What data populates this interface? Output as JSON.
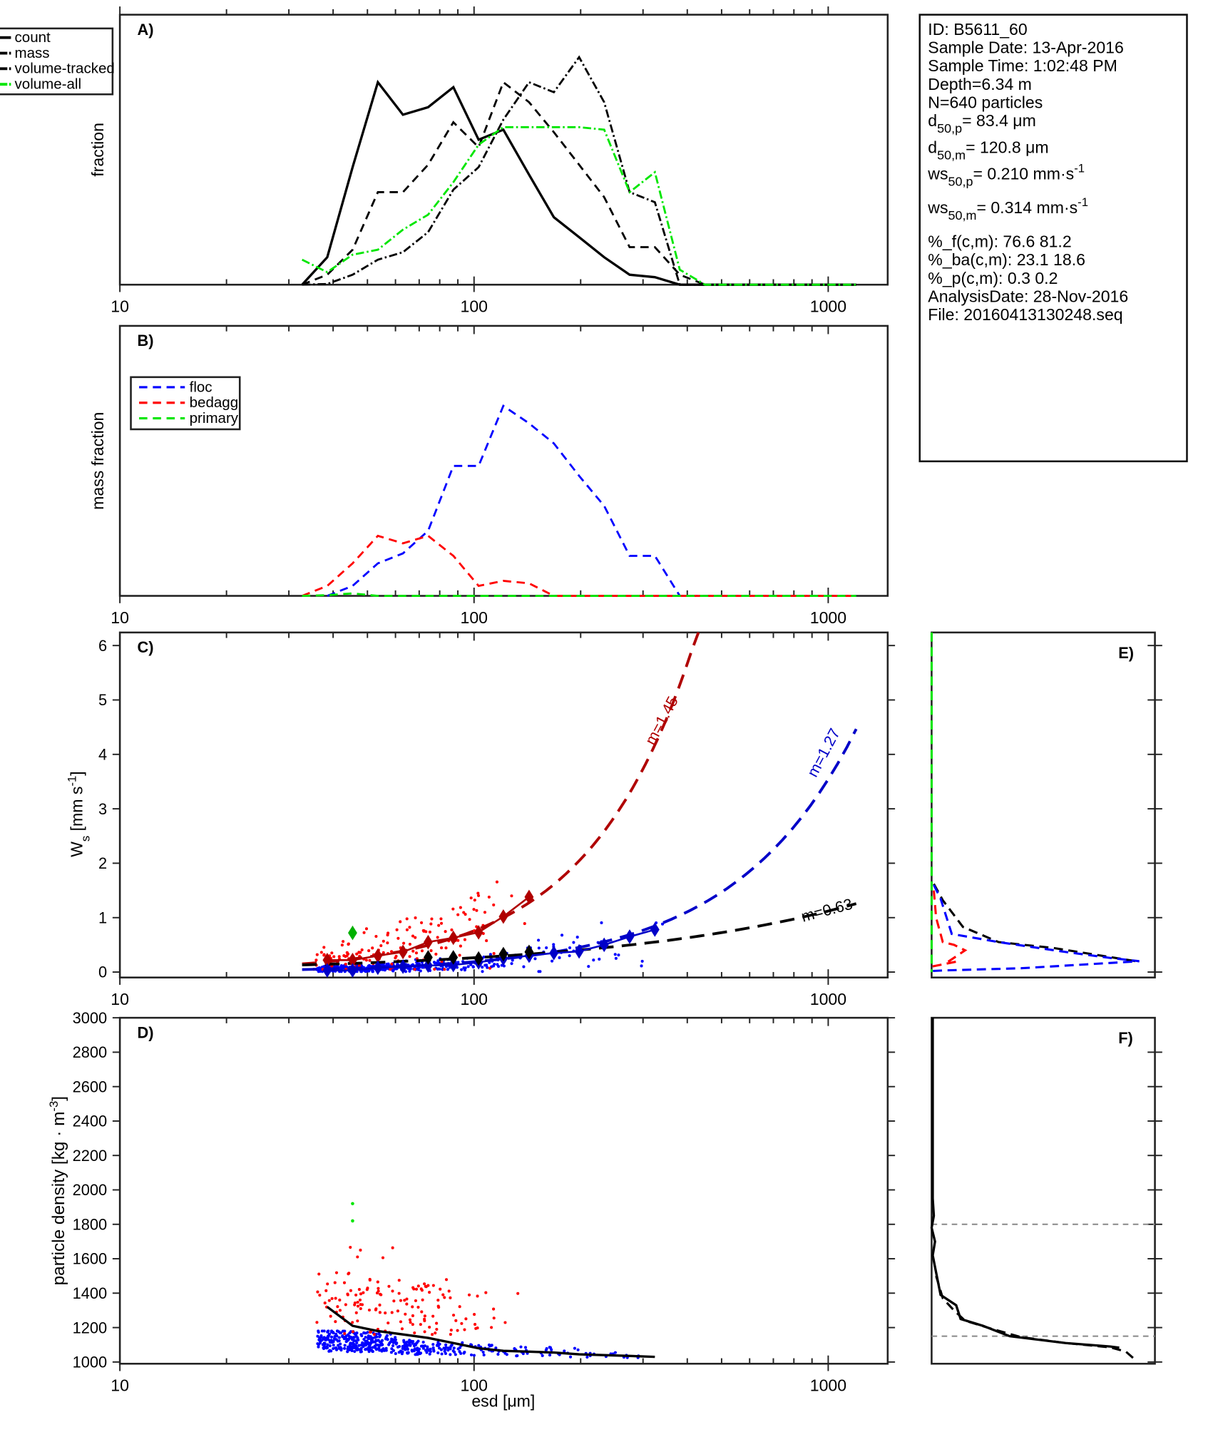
{
  "colors": {
    "black": "#000000",
    "green": "#00e600",
    "blue": "#0000ff",
    "red": "#ff0000",
    "darkred": "#b00000",
    "darkblue": "#0000c8",
    "diamond_green": "#00b000",
    "gray": "#888888"
  },
  "info_box": {
    "lines": [
      {
        "text": "ID: B5611_60"
      },
      {
        "text": "Sample Date: 13-Apr-2016"
      },
      {
        "text": "Sample Time:  1:02:48 PM"
      },
      {
        "text": "Depth=6.34 m"
      },
      {
        "text": "N=640 particles"
      },
      {
        "text": "d",
        "sub": "50,p",
        "rest": "=  83.4 μm"
      },
      {
        "text": "d",
        "sub": "50,m",
        "rest": "= 120.8 μm"
      },
      {
        "text": "ws",
        "sub": "50,p",
        "rest": "= 0.210 mm·s",
        "sup": "-1"
      },
      {
        "text": "ws",
        "sub": "50,m",
        "rest": "= 0.314 mm·s",
        "sup": "-1"
      },
      {
        "text": "%_f(c,m): 76.6 81.2"
      },
      {
        "text": "%_ba(c,m): 23.1 18.6"
      },
      {
        "text": "%_p(c,m): 0.3 0.2"
      },
      {
        "text": "AnalysisDate: 28-Nov-2016"
      },
      {
        "text": "File: 20160413130248.seq"
      }
    ]
  },
  "chart_data": [
    {
      "panel": "A)",
      "type": "line",
      "xscale": "log",
      "xlim": [
        10,
        1472
      ],
      "ylim": [
        0,
        1
      ],
      "xticklabels": [
        "10",
        "100",
        "1000"
      ],
      "ylabel": "fraction",
      "xlabel": "",
      "legend": {
        "placement": "top-left-outside",
        "entries": [
          "count",
          "mass",
          "volume-tracked",
          "volume-all"
        ]
      },
      "x": [
        32.7,
        38.5,
        45.4,
        53.5,
        63,
        74.2,
        87.4,
        103,
        121,
        143,
        168,
        198,
        233,
        275,
        324,
        381,
        449,
        529,
        623,
        734,
        865,
        1019,
        1200
      ],
      "series": [
        {
          "name": "count",
          "style": "solid",
          "color": "#000000",
          "values": [
            0,
            0.11,
            0.47,
            0.81,
            0.68,
            0.71,
            0.79,
            0.58,
            0.62,
            0.44,
            0.27,
            0.19,
            0.11,
            0.04,
            0.03,
            0,
            0,
            0,
            0,
            0,
            0,
            0,
            0
          ]
        },
        {
          "name": "mass",
          "style": "dashed",
          "color": "#000000",
          "values": [
            0,
            0.04,
            0.14,
            0.37,
            0.37,
            0.48,
            0.65,
            0.55,
            0.81,
            0.73,
            0.61,
            0.48,
            0.35,
            0.15,
            0.15,
            0.04,
            0,
            0,
            0,
            0,
            0,
            0,
            0
          ]
        },
        {
          "name": "volume-tracked",
          "style": "dashdot",
          "color": "#000000",
          "values": [
            0,
            0.003,
            0.04,
            0.1,
            0.13,
            0.21,
            0.38,
            0.47,
            0.66,
            0.81,
            0.77,
            0.91,
            0.73,
            0.37,
            0.33,
            0,
            0,
            0,
            0,
            0,
            0,
            0,
            0
          ]
        },
        {
          "name": "volume-all",
          "style": "dashdot",
          "color": "#00e600",
          "values": [
            0.1,
            0.05,
            0.12,
            0.14,
            0.22,
            0.28,
            0.41,
            0.56,
            0.63,
            0.63,
            0.63,
            0.63,
            0.62,
            0.37,
            0.45,
            0.06,
            0,
            0,
            0,
            0,
            0,
            0,
            0
          ]
        }
      ]
    },
    {
      "panel": "B)",
      "type": "line",
      "xscale": "log",
      "xlim": [
        10,
        1472
      ],
      "ylim": [
        0,
        1
      ],
      "xticklabels": [
        "10",
        "100",
        "1000"
      ],
      "ylabel": "mass fraction",
      "xlabel": "",
      "legend": {
        "placement": "top-left",
        "entries": [
          "floc",
          "bedagg",
          "primary"
        ]
      },
      "x": [
        32.7,
        38.5,
        45.4,
        53.5,
        63,
        74.2,
        87.4,
        103,
        121,
        143,
        168,
        198,
        233,
        275,
        324,
        381,
        449,
        529,
        623,
        734,
        865,
        1019,
        1200
      ],
      "series": [
        {
          "name": "floc",
          "style": "dashed",
          "color": "#0000ff",
          "values": [
            null,
            0,
            0.04,
            0.13,
            0.17,
            0.26,
            0.52,
            0.52,
            0.76,
            0.69,
            0.61,
            0.48,
            0.36,
            0.16,
            0.16,
            0,
            0,
            0,
            0,
            0,
            0,
            0,
            0
          ]
        },
        {
          "name": "bedagg",
          "style": "dashed",
          "color": "#ff0000",
          "values": [
            0,
            0.04,
            0.13,
            0.24,
            0.21,
            0.24,
            0.16,
            0.04,
            0.06,
            0.05,
            0,
            0,
            0,
            0,
            0,
            0,
            0,
            0,
            0,
            0,
            0,
            0,
            0
          ]
        },
        {
          "name": "primary",
          "style": "dashed",
          "color": "#00e600",
          "values": [
            0,
            0.003,
            0.01,
            0,
            0,
            0,
            0,
            0,
            0,
            0,
            0,
            0,
            0,
            0,
            0,
            0,
            0,
            0,
            0,
            0,
            0,
            0,
            0
          ]
        }
      ]
    },
    {
      "panel": "C)",
      "type": "scatter",
      "xscale": "log",
      "xlim": [
        10,
        1472
      ],
      "ylim": [
        -0.1,
        6.24
      ],
      "xticklabels": [
        "10",
        "100",
        "1000"
      ],
      "yticks": [
        0,
        1,
        2,
        3,
        4,
        5,
        6
      ],
      "yticklabels": [
        "0",
        "1",
        "2",
        "3",
        "4",
        "5",
        "6"
      ],
      "ylabel": {
        "main": "W",
        "sub": "s",
        "rest": " [mm s",
        "sup": "-1",
        "end": "]"
      },
      "fits": [
        {
          "label": "m=1.45",
          "color": "#b00000",
          "coef": 0.15,
          "d0": 32.7,
          "exponent": 1.45,
          "xrange": [
            32.7,
            430
          ]
        },
        {
          "label": "m=1.27",
          "color": "#0000c8",
          "coef": 0.046,
          "d0": 32.7,
          "exponent": 1.27,
          "xrange": [
            32.7,
            1200
          ]
        },
        {
          "label": "m=0.63",
          "color": "#000000",
          "coef": 0.13,
          "d0": 32.7,
          "exponent": 0.63,
          "xrange": [
            32.7,
            1200
          ]
        }
      ],
      "binned_means": [
        {
          "name": "bedagg",
          "color": "#b00000",
          "x": [
            38.5,
            45.4,
            53.5,
            63,
            74.2,
            87.4,
            103,
            121,
            143
          ],
          "values": [
            0.22,
            0.22,
            0.3,
            0.37,
            0.55,
            0.63,
            0.73,
            1.02,
            1.38
          ]
        },
        {
          "name": "floc",
          "color": "#0000c8",
          "x": [
            38.5,
            45.4,
            53.5,
            63,
            74.2,
            87.4,
            103,
            121,
            143,
            168,
            198,
            233,
            275,
            324
          ],
          "values": [
            0.03,
            0.03,
            0.08,
            0.1,
            0.12,
            0.13,
            0.18,
            0.25,
            0.3,
            0.35,
            0.38,
            0.5,
            0.65,
            0.78
          ]
        },
        {
          "name": "all",
          "color": "#000000",
          "x": [
            74.2,
            87.4,
            103,
            121,
            143
          ],
          "values": [
            0.27,
            0.27,
            0.25,
            0.33,
            0.37
          ]
        },
        {
          "name": "primary",
          "color": "#00b000",
          "x": [
            45.4
          ],
          "values": [
            0.72
          ]
        }
      ],
      "scatter": {
        "floc_count": 480,
        "bedagg_count": 150
      }
    },
    {
      "panel": "D)",
      "type": "scatter",
      "xscale": "log",
      "xlim": [
        10,
        1472
      ],
      "ylim": [
        990,
        3000
      ],
      "xticklabels": [
        "10",
        "100",
        "1000"
      ],
      "xlabel": "esd [μm]",
      "yticks": [
        1000,
        1200,
        1400,
        1600,
        1800,
        2000,
        2200,
        2400,
        2600,
        2800,
        3000
      ],
      "yticklabels": [
        "1000",
        "1200",
        "1400",
        "1600",
        "1800",
        "2000",
        "2200",
        "2400",
        "2600",
        "2800",
        "3000"
      ],
      "ylabel": {
        "main": "particle density [kg · m",
        "sup": "-3",
        "end": "]"
      },
      "mean_line": {
        "x": [
          38.5,
          45.4,
          53.5,
          63,
          74.2,
          87.4,
          103,
          121,
          143,
          168,
          198,
          233,
          275,
          324
        ],
        "values": [
          1320,
          1210,
          1180,
          1160,
          1140,
          1110,
          1080,
          1065,
          1060,
          1055,
          1045,
          1040,
          1035,
          1030
        ]
      },
      "primary_points": [
        [
          45.4,
          1920
        ],
        [
          45.4,
          1820
        ]
      ]
    },
    {
      "panel": "E)",
      "type": "line",
      "xlim": [
        0,
        1
      ],
      "ylim": [
        -0.1,
        6.24
      ],
      "series": [
        {
          "name": "all",
          "style": "dashed",
          "color": "#000000",
          "points": [
            [
              0.01,
              1.62
            ],
            [
              0.05,
              1.32
            ],
            [
              0.14,
              0.83
            ],
            [
              0.3,
              0.55
            ],
            [
              0.55,
              0.44
            ],
            [
              0.93,
              0.19
            ]
          ]
        },
        {
          "name": "floc",
          "style": "dashed",
          "color": "#0000ff",
          "points": [
            [
              0.01,
              1.6
            ],
            [
              0.04,
              1.35
            ],
            [
              0.09,
              0.7
            ],
            [
              0.3,
              0.55
            ],
            [
              0.6,
              0.37
            ],
            [
              0.8,
              0.26
            ],
            [
              0.93,
              0.2
            ],
            [
              0.4,
              0.07
            ],
            [
              0.05,
              0.03
            ],
            [
              0,
              0.02
            ]
          ]
        },
        {
          "name": "bedagg",
          "style": "dashed",
          "color": "#ff0000",
          "points": [
            [
              0.01,
              1.5
            ],
            [
              0.02,
              1.0
            ],
            [
              0.05,
              0.55
            ],
            [
              0.1,
              0.5
            ],
            [
              0.15,
              0.4
            ],
            [
              0.06,
              0.15
            ],
            [
              0.12,
              0.2
            ],
            [
              0,
              0.1
            ]
          ]
        },
        {
          "name": "primary",
          "style": "dashed",
          "color": "#00e600",
          "points": [
            [
              0,
              6.24
            ],
            [
              0,
              0
            ]
          ]
        }
      ]
    },
    {
      "panel": "F)",
      "type": "line",
      "xlim": [
        0,
        1
      ],
      "ylim": [
        990,
        3000
      ],
      "reference_lines": [
        1800,
        1150
      ],
      "series": [
        {
          "name": "solid",
          "style": "solid",
          "color": "#000000",
          "points": [
            [
              0.005,
              3000
            ],
            [
              0.005,
              1950
            ],
            [
              0.01,
              1850
            ],
            [
              0,
              1780
            ],
            [
              0.015,
              1700
            ],
            [
              0.005,
              1620
            ],
            [
              0.02,
              1520
            ],
            [
              0.04,
              1390
            ],
            [
              0.11,
              1330
            ],
            [
              0.13,
              1250
            ],
            [
              0.23,
              1210
            ],
            [
              0.35,
              1150
            ],
            [
              0.6,
              1110
            ],
            [
              0.8,
              1090
            ],
            [
              0.84,
              1083
            ]
          ]
        },
        {
          "name": "dashed",
          "style": "dashed",
          "color": "#000000",
          "points": [
            [
              0.02,
              1500
            ],
            [
              0.05,
              1370
            ],
            [
              0.1,
              1300
            ],
            [
              0.15,
              1240
            ],
            [
              0.25,
              1200
            ],
            [
              0.4,
              1145
            ],
            [
              0.6,
              1110
            ],
            [
              0.8,
              1085
            ],
            [
              0.87,
              1060
            ],
            [
              0.91,
              1015
            ]
          ]
        }
      ]
    }
  ]
}
